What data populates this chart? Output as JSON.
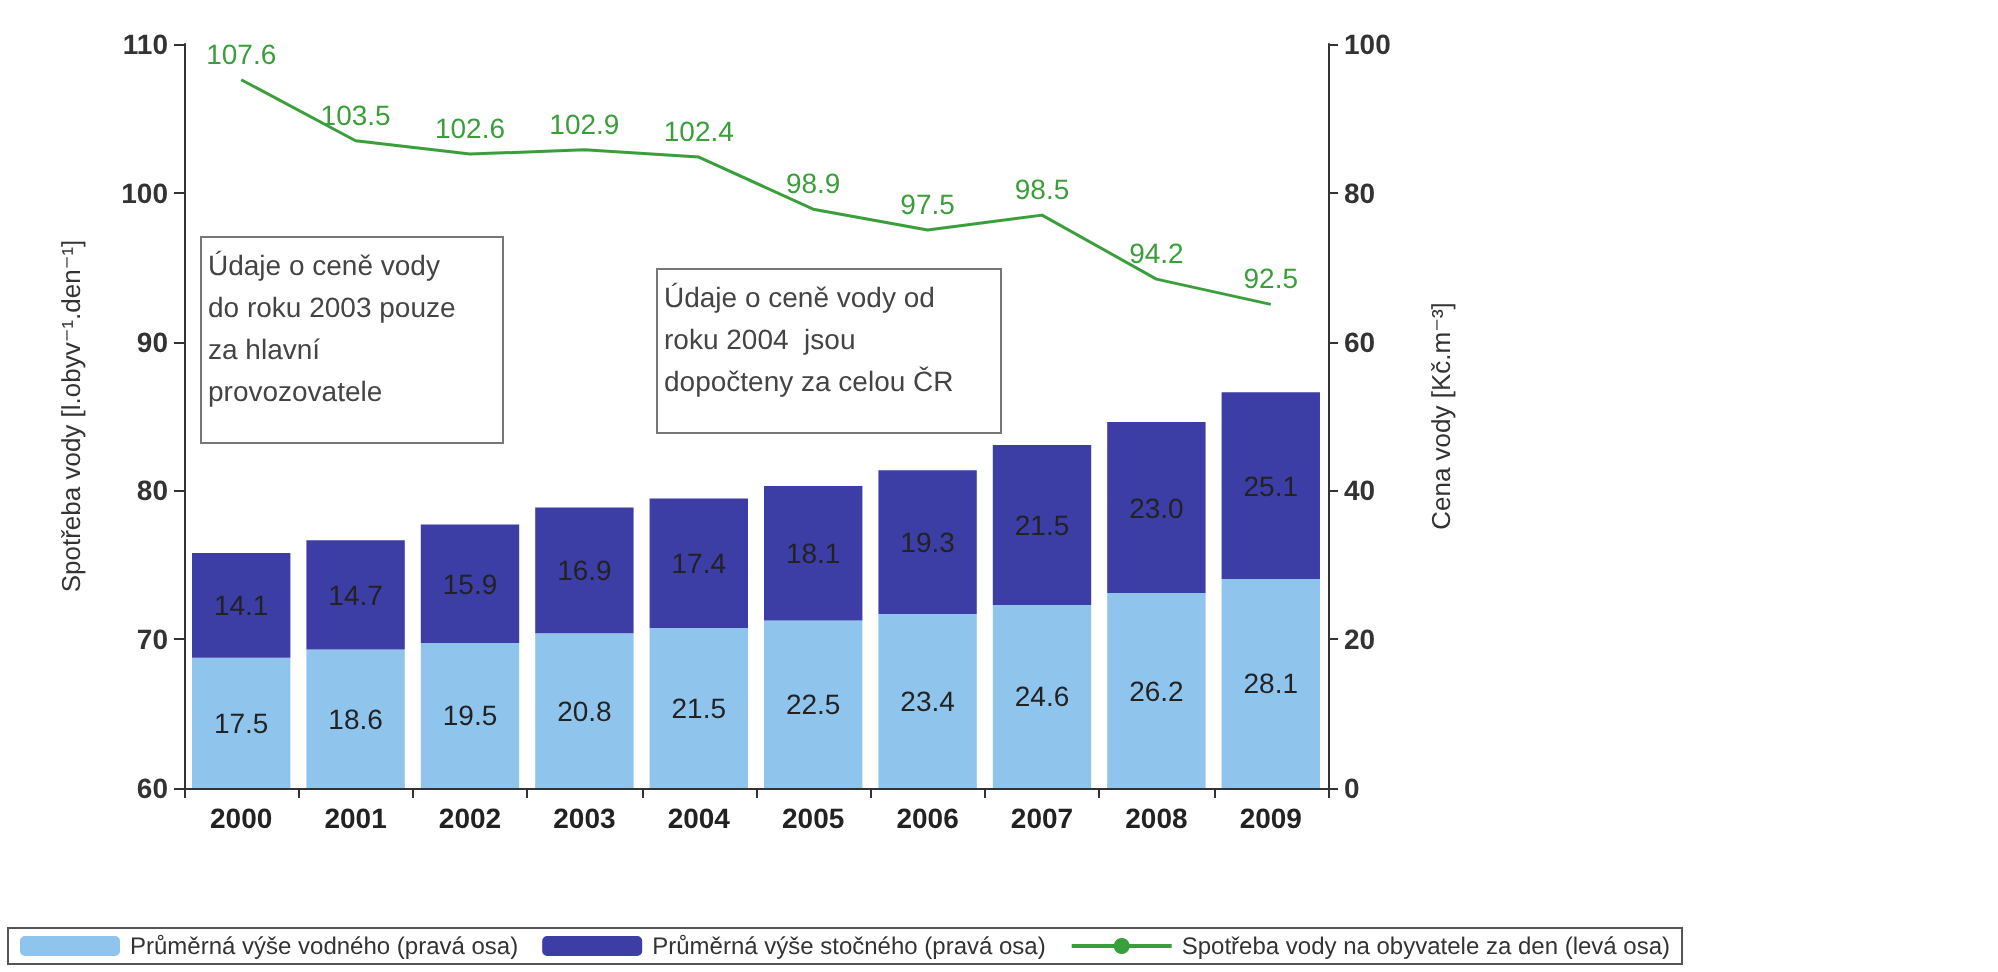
{
  "chart_data": {
    "type": "bar",
    "stacked": true,
    "categories": [
      "2000",
      "2001",
      "2002",
      "2003",
      "2004",
      "2005",
      "2006",
      "2007",
      "2008",
      "2009"
    ],
    "series": [
      {
        "name": "Průměrná výše vodného (pravá osa)",
        "color": "#8fc4ec",
        "axis": "y2",
        "values": [
          17.5,
          18.6,
          19.5,
          20.8,
          21.5,
          22.5,
          23.4,
          24.6,
          26.2,
          28.1
        ]
      },
      {
        "name": "Průměrná výše stočného (pravá osa)",
        "color": "#3c3ea6",
        "axis": "y2",
        "values": [
          14.1,
          14.7,
          15.9,
          16.9,
          17.4,
          18.1,
          19.3,
          21.5,
          23.0,
          25.1
        ],
        "value_labels": [
          "14.1",
          "14.7",
          "15.9",
          "16.9",
          "17.4",
          "18.1",
          "19.3",
          "21.5",
          "23.0",
          "25.1"
        ]
      },
      {
        "name": "Spotřeba vody na obyvatele za den (levá osa)",
        "type": "line",
        "color": "#3a9e3a",
        "values": [
          107.6,
          103.5,
          102.6,
          102.9,
          102.4,
          98.9,
          97.5,
          98.5,
          94.2,
          92.5
        ]
      }
    ],
    "ylabel": "Spotřeba vody [l.obyv⁻¹.den⁻¹]",
    "y2label": "Cena vody [Kč.m⁻³]",
    "ylim": [
      60,
      110
    ],
    "yticks": [
      60,
      70,
      80,
      90,
      100,
      110
    ],
    "y2lim": [
      0,
      100
    ],
    "y2ticks": [
      0,
      20,
      40,
      60,
      80,
      100
    ],
    "annotations": [
      "Údaje o ceně vody\ndo roku 2003 pouze\nza hlavní\nprovozovatele",
      "Údaje o ceně vody od\nroku 2004  jsou\ndopočteny za celou ČR"
    ],
    "data_labels": true,
    "legend": "bottom",
    "grid": false,
    "marker": "none",
    "line_style": "solid"
  }
}
